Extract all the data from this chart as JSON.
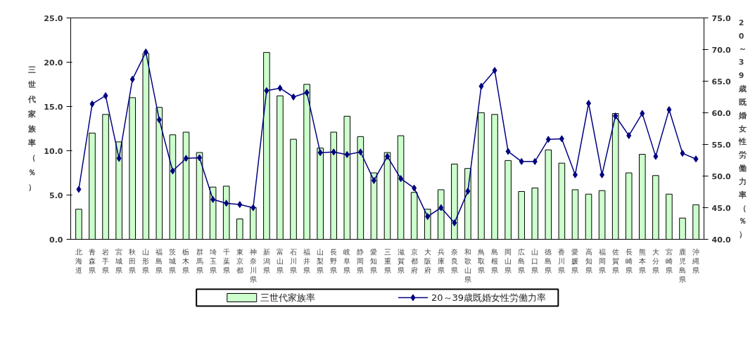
{
  "chart_data": {
    "type": "bar",
    "ylabel": "三世代家族率（％）",
    "y2label": "20～39歳既婚女性労働力率（％）",
    "categories": [
      "北海道",
      "青森県",
      "岩手県",
      "宮城県",
      "秋田県",
      "山形県",
      "福島県",
      "茨城県",
      "栃木県",
      "群馬県",
      "埼玉県",
      "千葉県",
      "東京都",
      "神奈川県",
      "新潟県",
      "富山県",
      "石川県",
      "福井県",
      "山梨県",
      "長野県",
      "岐阜県",
      "静岡県",
      "愛知県",
      "三重県",
      "滋賀県",
      "京都府",
      "大阪府",
      "兵庫県",
      "奈良県",
      "和歌山県",
      "鳥取県",
      "島根県",
      "岡山県",
      "広島県",
      "山口県",
      "徳島県",
      "香川県",
      "愛媛県",
      "高知県",
      "福岡県",
      "佐賀県",
      "長崎県",
      "熊本県",
      "大分県",
      "宮崎県",
      "鹿児島県",
      "沖縄県"
    ],
    "series": [
      {
        "name": "三世代家族率",
        "color": "#ccffcc",
        "values": [
          3.4,
          12.0,
          14.1,
          11.0,
          16.0,
          21.0,
          14.9,
          11.8,
          12.1,
          9.8,
          5.9,
          6.0,
          2.3,
          3.6,
          21.1,
          16.2,
          11.3,
          17.5,
          10.3,
          12.1,
          13.9,
          11.6,
          7.5,
          9.8,
          11.7,
          5.3,
          3.4,
          5.6,
          8.5,
          8.0,
          14.3,
          14.1,
          8.9,
          5.4,
          5.8,
          10.1,
          8.6,
          5.6,
          5.1,
          5.5,
          14.2,
          7.5,
          9.6,
          7.2,
          5.1,
          2.4,
          3.9
        ]
      },
      {
        "name": "20～39歳既婚女性労働力率",
        "type": "line",
        "axis": "y2",
        "color": "#000080",
        "marker": "diamond",
        "values": [
          47.9,
          61.4,
          62.7,
          52.8,
          65.3,
          69.6,
          58.9,
          50.8,
          52.8,
          52.9,
          46.3,
          45.7,
          45.5,
          45.0,
          63.5,
          63.9,
          62.5,
          63.2,
          53.7,
          53.8,
          53.4,
          53.8,
          49.3,
          53.1,
          49.6,
          48.1,
          43.6,
          45.0,
          42.6,
          47.6,
          64.2,
          66.7,
          53.9,
          52.3,
          52.3,
          55.8,
          55.9,
          50.2,
          61.5,
          50.2,
          59.5,
          56.4,
          59.9,
          53.1,
          60.5,
          53.6,
          52.7
        ]
      }
    ],
    "ylim": [
      0,
      25
    ],
    "yticks": [
      {
        "value": 0,
        "label": "0.0"
      },
      {
        "value": 5,
        "label": "5.0"
      },
      {
        "value": 10,
        "label": "10.0"
      },
      {
        "value": 15,
        "label": "15.0"
      },
      {
        "value": 20,
        "label": "20.0"
      },
      {
        "value": 25,
        "label": "25.0"
      }
    ],
    "y2lim": [
      40,
      75
    ],
    "y2ticks": [
      {
        "value": 40,
        "label": "40.0"
      },
      {
        "value": 45,
        "label": "45.0"
      },
      {
        "value": 50,
        "label": "50.0"
      },
      {
        "value": 55,
        "label": "55.0"
      },
      {
        "value": 60,
        "label": "60.0"
      },
      {
        "value": 65,
        "label": "65.0"
      },
      {
        "value": 70,
        "label": "70.0"
      },
      {
        "value": 75,
        "label": "75.0"
      }
    ],
    "grid": false,
    "legend": "bottom"
  }
}
